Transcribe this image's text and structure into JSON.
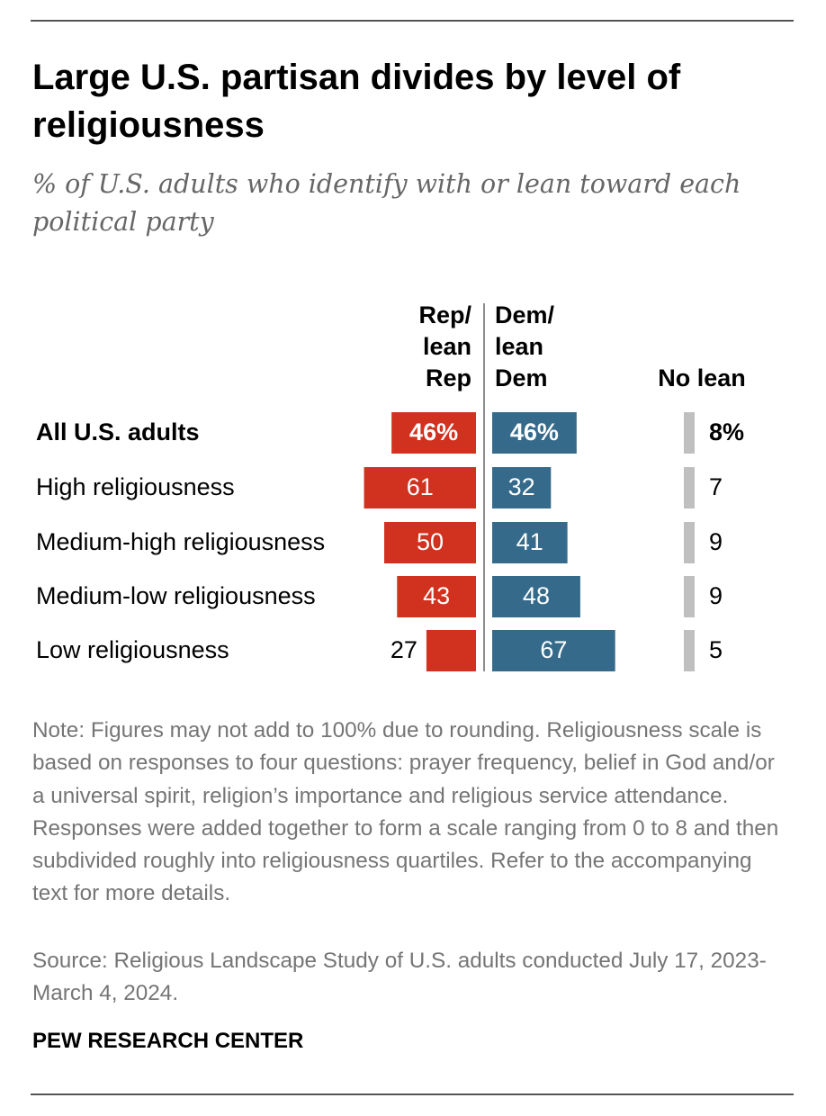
{
  "title": "Large U.S. partisan divides by level of religiousness",
  "subtitle": "% of U.S. adults who identify with or lean toward each political party",
  "note": "Note: Figures may not add to 100% due to rounding. Religiousness scale is based on responses to four questions: prayer frequency, belief in God and/or a universal spirit, religion’s importance and religious service attendance. Responses were added together to form a scale ranging from 0 to 8 and then subdivided roughly into religiousness quartiles. Refer to the accompanying text for more details.",
  "source": "Source: Religious Landscape Study of U.S. adults conducted July 17, 2023-March 4, 2024.",
  "branding": "PEW RESEARCH CENTER",
  "colors": {
    "rep": "#D1321F",
    "dem": "#366A8A",
    "no_lean": "#BFBFBF"
  },
  "chart_data": {
    "type": "bar",
    "orientation": "horizontal diverging",
    "column_headers": {
      "rep": [
        "Rep/",
        "lean",
        "Rep"
      ],
      "dem": [
        "Dem/",
        "lean",
        "Dem"
      ],
      "no_lean": [
        "No lean"
      ]
    },
    "categories": [
      "All U.S. adults",
      "High religiousness",
      "Medium-high religiousness",
      "Medium-low religiousness",
      "Low religiousness"
    ],
    "series": [
      {
        "name": "Rep/lean Rep",
        "values": [
          46,
          61,
          50,
          43,
          27
        ],
        "labels": [
          "46%",
          "61",
          "50",
          "43",
          "27"
        ]
      },
      {
        "name": "Dem/lean Dem",
        "values": [
          46,
          32,
          41,
          48,
          67
        ],
        "labels": [
          "46%",
          "32",
          "41",
          "48",
          "67"
        ]
      },
      {
        "name": "No lean",
        "values": [
          8,
          7,
          9,
          9,
          5
        ],
        "labels": [
          "8%",
          "7",
          "9",
          "9",
          "5"
        ]
      }
    ]
  }
}
